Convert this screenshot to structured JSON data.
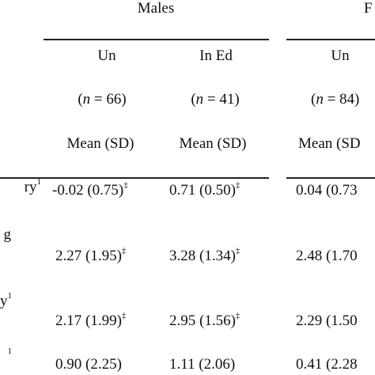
{
  "groups": [
    {
      "label": "Males"
    },
    {
      "label": "F"
    }
  ],
  "columns": [
    {
      "label": "Un",
      "n_label": "(",
      "n_var": "n",
      "n_value": " = 66)",
      "stat": "Mean (SD)"
    },
    {
      "label": "In Ed",
      "n_label": "(",
      "n_var": "n",
      "n_value": " = 41)",
      "stat": "Mean (SD)"
    },
    {
      "label": "Un",
      "n_label": "(",
      "n_var": "n",
      "n_value": " = 84)",
      "stat": "Mean (SD"
    }
  ],
  "rows": [
    {
      "label": "ry",
      "label_sup": "1",
      "cells": [
        {
          "value": "-0.02 (0.75)",
          "mark": "‡"
        },
        {
          "value": "0.71 (0.50)",
          "mark": "‡"
        },
        {
          "value": "0.04 (0.73",
          "mark": ""
        }
      ]
    },
    {
      "label": "g",
      "label_sup": "",
      "cells": [
        {
          "value": "2.27 (1.95)",
          "mark": "‡"
        },
        {
          "value": "3.28 (1.34)",
          "mark": "‡"
        },
        {
          "value": "2.48 (1.70",
          "mark": ""
        }
      ]
    },
    {
      "label": "y",
      "label_sup": "1",
      "cells": [
        {
          "value": "2.17 (1.99)",
          "mark": "‡"
        },
        {
          "value": "2.95 (1.56)",
          "mark": "‡"
        },
        {
          "value": "2.29 (1.50",
          "mark": ""
        }
      ]
    },
    {
      "label": "",
      "label_sup": "1",
      "cells": [
        {
          "value": "0.90 (2.25)",
          "mark": ""
        },
        {
          "value": "1.11 (2.06)",
          "mark": ""
        },
        {
          "value": "0.41 (2.28",
          "mark": ""
        }
      ]
    }
  ]
}
